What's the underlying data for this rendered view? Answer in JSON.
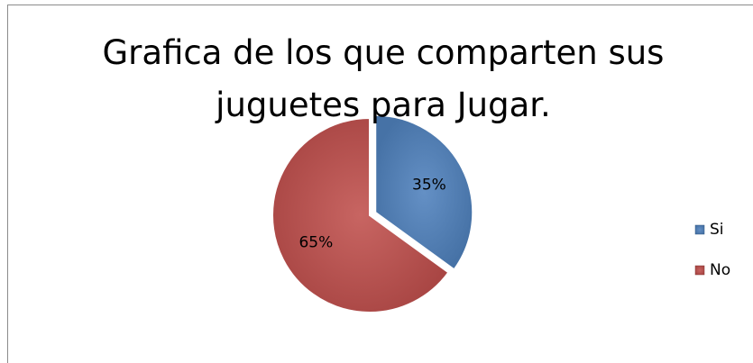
{
  "chart_data": {
    "type": "pie",
    "title": "Grafica de los que comparten sus juguetes para Jugar.",
    "categories": [
      "Si",
      "No"
    ],
    "values": [
      35,
      65
    ],
    "value_labels": [
      "35%",
      "65%"
    ],
    "colors": [
      "#4f81bd",
      "#c0504d"
    ],
    "legend": "right"
  }
}
